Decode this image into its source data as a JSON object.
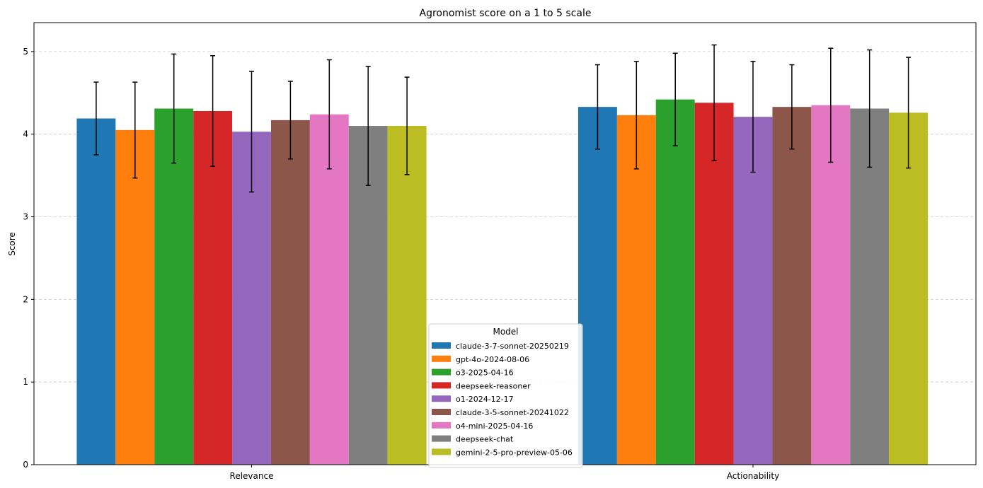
{
  "chart_data": {
    "type": "bar",
    "title": "Agronomist score on a 1 to 5 scale",
    "xlabel": "",
    "ylabel": "Score",
    "ylim": [
      0,
      5.35
    ],
    "yticks": [
      "0",
      "1",
      "2",
      "3",
      "4",
      "5"
    ],
    "categories": [
      "Relevance",
      "Actionability"
    ],
    "grid": "horizontal dashed",
    "legend": {
      "title": "Model",
      "placement": "bottom-center"
    },
    "series": [
      {
        "name": "claude-3-7-sonnet-20250219",
        "color": "#1f77b4",
        "values": [
          4.19,
          4.33
        ],
        "errors": [
          0.44,
          0.51
        ]
      },
      {
        "name": "gpt-4o-2024-08-06",
        "color": "#ff7f0e",
        "values": [
          4.05,
          4.23
        ],
        "errors": [
          0.58,
          0.65
        ]
      },
      {
        "name": "o3-2025-04-16",
        "color": "#2ca02c",
        "values": [
          4.31,
          4.42
        ],
        "errors": [
          0.66,
          0.56
        ]
      },
      {
        "name": "deepseek-reasoner",
        "color": "#d62728",
        "values": [
          4.28,
          4.38
        ],
        "errors": [
          0.67,
          0.7
        ]
      },
      {
        "name": "o1-2024-12-17",
        "color": "#9467bd",
        "values": [
          4.03,
          4.21
        ],
        "errors": [
          0.73,
          0.67
        ]
      },
      {
        "name": "claude-3-5-sonnet-20241022",
        "color": "#8c564b",
        "values": [
          4.17,
          4.33
        ],
        "errors": [
          0.47,
          0.51
        ]
      },
      {
        "name": "o4-mini-2025-04-16",
        "color": "#e377c2",
        "values": [
          4.24,
          4.35
        ],
        "errors": [
          0.66,
          0.69
        ]
      },
      {
        "name": "deepseek-chat",
        "color": "#7f7f7f",
        "values": [
          4.1,
          4.31
        ],
        "errors": [
          0.72,
          0.71
        ]
      },
      {
        "name": "gemini-2-5-pro-preview-05-06",
        "color": "#bcbd22",
        "values": [
          4.1,
          4.26
        ],
        "errors": [
          0.59,
          0.67
        ]
      }
    ]
  }
}
